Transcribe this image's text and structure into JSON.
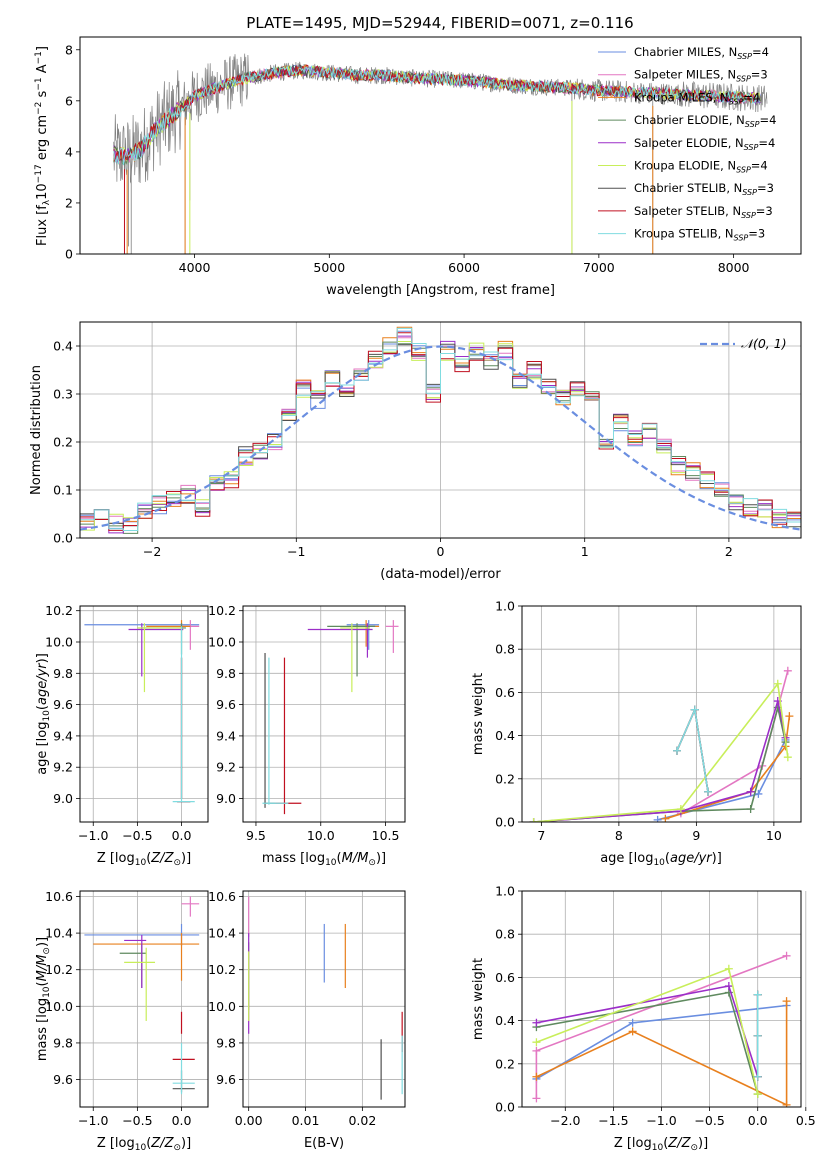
{
  "title": "PLATE=1495, MJD=52944, FIBERID=0071, z=0.116",
  "colors": {
    "Chabrier MILES": "#6a8ee0",
    "Salpeter MILES": "#e377c2",
    "Kroupa MILES": "#e8801e",
    "Chabrier ELODIE": "#5f8a5f",
    "Salpeter ELODIE": "#9b2ec8",
    "Kroupa ELODIE": "#c8ee5a",
    "Chabrier STELIB": "#505050",
    "Salpeter STELIB": "#c01020",
    "Kroupa STELIB": "#80dce0",
    "data": "#7f7f7f"
  },
  "chart_data": [
    {
      "type": "line",
      "title": "PLATE=1495, MJD=52944, FIBERID=0071, z=0.116",
      "xlabel": "wavelength [Angstrom, rest frame]",
      "ylabel": "Flux [f_λ10^-17 erg cm^-2 s^-1 A^-1]",
      "xlim": [
        3150,
        8500
      ],
      "ylim": [
        0,
        8.5
      ],
      "xticks": [
        "4000",
        "5000",
        "6000",
        "7000",
        "8000"
      ],
      "yticks": [
        "0",
        "2",
        "4",
        "6",
        "8"
      ],
      "grid": false,
      "legend_position": "top-right",
      "legend": [
        {
          "label": "Chabrier MILES, N",
          "sub": "SSP",
          "suffix": "=4"
        },
        {
          "label": "Salpeter MILES, N",
          "sub": "SSP",
          "suffix": "=3"
        },
        {
          "label": "Kroupa MILES, N",
          "sub": "SSP",
          "suffix": "=4"
        },
        {
          "label": "Chabrier ELODIE, N",
          "sub": "SSP",
          "suffix": "=4"
        },
        {
          "label": "Salpeter ELODIE, N",
          "sub": "SSP",
          "suffix": "=4"
        },
        {
          "label": "Kroupa ELODIE, N",
          "sub": "SSP",
          "suffix": "=4"
        },
        {
          "label": "Chabrier STELIB, N",
          "sub": "SSP",
          "suffix": "=3"
        },
        {
          "label": "Salpeter STELIB, N",
          "sub": "SSP",
          "suffix": "=3"
        },
        {
          "label": "Kroupa STELIB, N",
          "sub": "SSP",
          "suffix": "=3"
        }
      ],
      "continuum": [
        [
          3400,
          3.9
        ],
        [
          3500,
          3.8
        ],
        [
          3600,
          4.1
        ],
        [
          3700,
          4.8
        ],
        [
          3800,
          5.3
        ],
        [
          3900,
          5.7
        ],
        [
          4000,
          6.2
        ],
        [
          4200,
          6.6
        ],
        [
          4400,
          6.9
        ],
        [
          4600,
          7.1
        ],
        [
          4800,
          7.2
        ],
        [
          5000,
          7.1
        ],
        [
          5200,
          7.0
        ],
        [
          5400,
          7.0
        ],
        [
          5600,
          6.9
        ],
        [
          5800,
          6.85
        ],
        [
          6000,
          6.8
        ],
        [
          6200,
          6.7
        ],
        [
          6400,
          6.6
        ],
        [
          6600,
          6.55
        ],
        [
          6800,
          6.5
        ],
        [
          7000,
          6.4
        ],
        [
          7200,
          6.35
        ],
        [
          7400,
          6.3
        ],
        [
          7600,
          6.25
        ],
        [
          7800,
          6.2
        ],
        [
          8000,
          6.15
        ],
        [
          8200,
          6.1
        ]
      ],
      "dips": [
        [
          3480,
          0
        ],
        [
          3510,
          0.3
        ],
        [
          3530,
          0
        ],
        [
          3930,
          0
        ],
        [
          3965,
          2.1
        ],
        [
          6800,
          0
        ],
        [
          7400,
          0
        ]
      ]
    },
    {
      "type": "bar",
      "xlabel": "(data-model)/error",
      "ylabel": "Normed distribution",
      "xlim": [
        -2.5,
        2.5
      ],
      "ylim": [
        0,
        0.45
      ],
      "xticks": [
        "−2",
        "−1",
        "0",
        "1",
        "2"
      ],
      "yticks": [
        "0.0",
        "0.1",
        "0.2",
        "0.3",
        "0.4"
      ],
      "grid": true,
      "legend_label": "𝒩(0, 1)",
      "hist_centers": [
        -2.45,
        -2.35,
        -2.25,
        -2.15,
        -2.05,
        -1.95,
        -1.85,
        -1.75,
        -1.65,
        -1.55,
        -1.45,
        -1.35,
        -1.25,
        -1.15,
        -1.05,
        -0.95,
        -0.85,
        -0.75,
        -0.65,
        -0.55,
        -0.45,
        -0.35,
        -0.25,
        -0.15,
        -0.05,
        0.05,
        0.15,
        0.25,
        0.35,
        0.45,
        0.55,
        0.65,
        0.75,
        0.85,
        0.95,
        1.05,
        1.15,
        1.25,
        1.35,
        1.45,
        1.55,
        1.65,
        1.75,
        1.85,
        1.95,
        2.05,
        2.15,
        2.25,
        2.35,
        2.45
      ],
      "hist_base": [
        0.035,
        0.04,
        0.03,
        0.025,
        0.06,
        0.07,
        0.085,
        0.09,
        0.065,
        0.11,
        0.12,
        0.17,
        0.18,
        0.2,
        0.26,
        0.31,
        0.29,
        0.33,
        0.31,
        0.34,
        0.37,
        0.4,
        0.42,
        0.39,
        0.3,
        0.39,
        0.36,
        0.39,
        0.37,
        0.39,
        0.33,
        0.35,
        0.32,
        0.29,
        0.31,
        0.29,
        0.2,
        0.24,
        0.21,
        0.22,
        0.19,
        0.15,
        0.14,
        0.12,
        0.1,
        0.075,
        0.065,
        0.06,
        0.04,
        0.035
      ]
    },
    {
      "type": "scatter",
      "xlabel": "Z [log10(Z/Z_⊙)]",
      "ylabel": "age  [log10(age/yr)]",
      "xlim": [
        -1.15,
        0.3
      ],
      "ylim": [
        8.85,
        10.23
      ],
      "xticks": [
        "−1.0",
        "−0.5",
        "0.0"
      ],
      "yticks": [
        "9.0",
        "9.2",
        "9.4",
        "9.6",
        "9.8",
        "10.0",
        "10.2"
      ]
    },
    {
      "type": "scatter",
      "xlabel": "mass [log10(M/M_⊙)]",
      "ylabel": "",
      "xlim": [
        9.4,
        10.65
      ],
      "ylim": [
        8.85,
        10.23
      ],
      "xticks": [
        "9.5",
        "10.0",
        "10.5"
      ],
      "yticks": [
        "9.0",
        "9.2",
        "9.4",
        "9.6",
        "9.8",
        "10.0",
        "10.2"
      ]
    },
    {
      "type": "line",
      "xlabel": "age  [log10(age/yr)]",
      "ylabel": "mass weight",
      "xlim": [
        6.75,
        10.35
      ],
      "ylim": [
        0,
        1
      ],
      "xticks": [
        "7",
        "8",
        "9",
        "10"
      ],
      "yticks": [
        "0.0",
        "0.2",
        "0.4",
        "0.6",
        "0.8",
        "1.0"
      ],
      "grid": true,
      "series": [
        {
          "key": "Chabrier MILES",
          "x": [
            8.5,
            9.8,
            10.15
          ],
          "y": [
            0.01,
            0.13,
            0.38
          ]
        },
        {
          "key": "Salpeter MILES",
          "x": [
            8.8,
            9.85,
            10.18
          ],
          "y": [
            0.04,
            0.26,
            0.7
          ]
        },
        {
          "key": "Kroupa MILES",
          "x": [
            8.6,
            9.7,
            10.15,
            10.2
          ],
          "y": [
            0.015,
            0.14,
            0.35,
            0.49
          ]
        },
        {
          "key": "Chabrier ELODIE",
          "x": [
            6.9,
            8.8,
            9.7,
            10.05,
            10.15
          ],
          "y": [
            0.0,
            0.05,
            0.06,
            0.53,
            0.37
          ]
        },
        {
          "key": "Salpeter ELODIE",
          "x": [
            6.9,
            8.8,
            9.7,
            10.05,
            10.15
          ],
          "y": [
            0.0,
            0.05,
            0.14,
            0.56,
            0.39
          ]
        },
        {
          "key": "Kroupa ELODIE",
          "x": [
            6.9,
            8.8,
            10.05,
            10.18
          ],
          "y": [
            0.0,
            0.06,
            0.64,
            0.3
          ]
        },
        {
          "key": "Chabrier STELIB",
          "x": [
            8.75,
            8.98,
            9.15
          ],
          "y": [
            0.33,
            0.52,
            0.14
          ]
        },
        {
          "key": "Salpeter STELIB",
          "x": [
            8.75,
            8.98,
            9.15
          ],
          "y": [
            0.33,
            0.52,
            0.14
          ]
        },
        {
          "key": "Kroupa STELIB",
          "x": [
            8.75,
            8.98,
            9.15
          ],
          "y": [
            0.33,
            0.52,
            0.14
          ]
        }
      ]
    },
    {
      "type": "scatter",
      "xlabel": "Z [log10(Z/Z_⊙)]",
      "ylabel": "mass [log10(M/M_⊙)]",
      "xlim": [
        -1.15,
        0.3
      ],
      "ylim": [
        9.45,
        10.63
      ],
      "xticks": [
        "−1.0",
        "−0.5",
        "0.0"
      ],
      "yticks": [
        "9.6",
        "9.8",
        "10.0",
        "10.2",
        "10.4",
        "10.6"
      ]
    },
    {
      "type": "scatter",
      "xlabel": "E(B-V)",
      "ylabel": "",
      "xlim": [
        -0.001,
        0.0275
      ],
      "ylim": [
        9.45,
        10.63
      ],
      "xticks": [
        "0.00",
        "0.01",
        "0.02"
      ],
      "yticks": [
        "9.6",
        "9.8",
        "10.0",
        "10.2",
        "10.4",
        "10.6"
      ]
    },
    {
      "type": "line",
      "xlabel": "Z [log10(Z/Z_⊙)]",
      "ylabel": "mass weight",
      "xlim": [
        -2.45,
        0.45
      ],
      "ylim": [
        0,
        1
      ],
      "xticks": [
        "−2.0",
        "−1.5",
        "−1.0",
        "−0.5",
        "0.0",
        "0.5"
      ],
      "yticks": [
        "0.0",
        "0.2",
        "0.4",
        "0.6",
        "0.8",
        "1.0"
      ],
      "grid": true,
      "series": [
        {
          "key": "Chabrier MILES",
          "x": [
            -2.3,
            -1.3,
            0.3
          ],
          "y": [
            0.13,
            0.39,
            0.47
          ]
        },
        {
          "key": "Salpeter MILES",
          "x": [
            -2.3,
            -2.3,
            0.3
          ],
          "y": [
            0.04,
            0.26,
            0.7
          ]
        },
        {
          "key": "Kroupa MILES",
          "x": [
            -2.3,
            -1.3,
            0.3,
            0.3
          ],
          "y": [
            0.14,
            0.35,
            0.01,
            0.49
          ]
        },
        {
          "key": "Chabrier ELODIE",
          "x": [
            -2.3,
            -0.3,
            0.0
          ],
          "y": [
            0.37,
            0.53,
            0.06
          ]
        },
        {
          "key": "Salpeter ELODIE",
          "x": [
            -2.3,
            -0.3,
            0.0
          ],
          "y": [
            0.39,
            0.56,
            0.14
          ]
        },
        {
          "key": "Kroupa ELODIE",
          "x": [
            -2.3,
            -0.3,
            0.0
          ],
          "y": [
            0.3,
            0.64,
            0.06
          ]
        },
        {
          "key": "Chabrier STELIB",
          "x": [
            0.0,
            0.0,
            0.0
          ],
          "y": [
            0.14,
            0.33,
            0.52
          ]
        },
        {
          "key": "Salpeter STELIB",
          "x": [
            0.0,
            0.0,
            0.0
          ],
          "y": [
            0.14,
            0.33,
            0.52
          ]
        },
        {
          "key": "Kroupa STELIB",
          "x": [
            0.0,
            0.0,
            0.0
          ],
          "y": [
            0.14,
            0.33,
            0.52
          ]
        }
      ]
    }
  ],
  "errbars": {
    "age_z": [
      {
        "key": "Chabrier MILES",
        "x": 0.0,
        "y": 10.11,
        "xe": [
          -1.1,
          0.2
        ],
        "ye": [
          10.1,
          10.12
        ]
      },
      {
        "key": "Salpeter MILES",
        "x": 0.1,
        "y": 10.1,
        "xe": [
          0.0,
          0.2
        ],
        "ye": [
          9.95,
          10.14
        ]
      },
      {
        "key": "Kroupa MILES",
        "x": 0.0,
        "y": 10.1,
        "xe": [
          -0.4,
          0.1
        ],
        "ye": [
          10.07,
          10.14
        ]
      },
      {
        "key": "Chabrier ELODIE",
        "x": 0.0,
        "y": 10.09,
        "xe": [
          -0.45,
          0.05
        ],
        "ye": [
          9.92,
          10.12
        ]
      },
      {
        "key": "Salpeter ELODIE",
        "x": -0.45,
        "y": 10.08,
        "xe": [
          -0.6,
          0.02
        ],
        "ye": [
          9.78,
          10.12
        ]
      },
      {
        "key": "Kroupa ELODIE",
        "x": -0.42,
        "y": 10.09,
        "xe": [
          -0.5,
          0.0
        ],
        "ye": [
          9.68,
          10.12
        ]
      },
      {
        "key": "Chabrier STELIB",
        "x": 0.0,
        "y": 8.98,
        "xe": [
          -0.05,
          0.1
        ],
        "ye": [
          9.0,
          9.9
        ]
      },
      {
        "key": "Salpeter STELIB",
        "x": 0.0,
        "y": 8.98,
        "xe": [
          -0.05,
          0.1
        ],
        "ye": [
          9.0,
          9.9
        ]
      },
      {
        "key": "Kroupa STELIB",
        "x": 0.0,
        "y": 8.98,
        "xe": [
          -0.1,
          0.15
        ],
        "ye": [
          8.98,
          10.1
        ]
      }
    ],
    "age_mass": [
      {
        "key": "Chabrier MILES",
        "x": 10.37,
        "y": 10.11,
        "xe": [
          10.2,
          10.45
        ],
        "ye": [
          9.95,
          10.14
        ]
      },
      {
        "key": "Salpeter MILES",
        "x": 10.56,
        "y": 10.1,
        "xe": [
          10.5,
          10.6
        ],
        "ye": [
          9.93,
          10.14
        ]
      },
      {
        "key": "Kroupa MILES",
        "x": 10.35,
        "y": 10.1,
        "xe": [
          10.25,
          10.45
        ],
        "ye": [
          9.97,
          10.14
        ]
      },
      {
        "key": "Chabrier ELODIE",
        "x": 10.28,
        "y": 10.1,
        "xe": [
          10.05,
          10.42
        ],
        "ye": [
          9.78,
          10.12
        ]
      },
      {
        "key": "Salpeter ELODIE",
        "x": 10.36,
        "y": 10.08,
        "xe": [
          9.9,
          10.4
        ],
        "ye": [
          9.9,
          10.12
        ]
      },
      {
        "key": "Kroupa ELODIE",
        "x": 10.24,
        "y": 10.09,
        "xe": [
          10.15,
          10.38
        ],
        "ye": [
          9.68,
          10.12
        ]
      },
      {
        "key": "Chabrier STELIB",
        "x": 9.57,
        "y": 8.97,
        "xe": [
          9.56,
          9.65
        ],
        "ye": [
          8.94,
          9.93
        ]
      },
      {
        "key": "Salpeter STELIB",
        "x": 9.72,
        "y": 8.97,
        "xe": [
          9.65,
          9.85
        ],
        "ye": [
          8.9,
          9.9
        ]
      },
      {
        "key": "Kroupa STELIB",
        "x": 9.6,
        "y": 8.97,
        "xe": [
          9.55,
          9.75
        ],
        "ye": [
          8.96,
          9.9
        ]
      }
    ],
    "mass_z": [
      {
        "key": "Chabrier MILES",
        "x": 0.0,
        "y": 10.39,
        "xe": [
          -1.1,
          0.2
        ],
        "ye": [
          10.33,
          10.45
        ]
      },
      {
        "key": "Salpeter MILES",
        "x": 0.1,
        "y": 10.56,
        "xe": [
          0.0,
          0.2
        ],
        "ye": [
          10.49,
          10.6
        ]
      },
      {
        "key": "Kroupa MILES",
        "x": 0.0,
        "y": 10.34,
        "xe": [
          -1.0,
          0.2
        ],
        "ye": [
          10.14,
          10.4
        ]
      },
      {
        "key": "Chabrier ELODIE",
        "x": -0.45,
        "y": 10.29,
        "xe": [
          -0.7,
          -0.4
        ],
        "ye": [
          10.1,
          10.34
        ]
      },
      {
        "key": "Salpeter ELODIE",
        "x": -0.45,
        "y": 10.36,
        "xe": [
          -0.65,
          -0.4
        ],
        "ye": [
          10.1,
          10.39
        ]
      },
      {
        "key": "Kroupa ELODIE",
        "x": -0.4,
        "y": 10.24,
        "xe": [
          -0.65,
          -0.3
        ],
        "ye": [
          9.92,
          10.32
        ]
      },
      {
        "key": "Chabrier STELIB",
        "x": 0.0,
        "y": 9.55,
        "xe": [
          -0.1,
          0.15
        ],
        "ye": [
          9.53,
          9.65
        ]
      },
      {
        "key": "Salpeter STELIB",
        "x": 0.0,
        "y": 9.71,
        "xe": [
          -0.1,
          0.15
        ],
        "ye": [
          9.85,
          9.97
        ]
      },
      {
        "key": "Kroupa STELIB",
        "x": 0.0,
        "y": 9.58,
        "xe": [
          -0.1,
          0.15
        ],
        "ye": [
          9.52,
          9.8
        ]
      }
    ],
    "mass_ebv": [
      {
        "key": "Chabrier MILES",
        "x": 0.0133,
        "y": 10.29,
        "ye": [
          10.13,
          10.45
        ]
      },
      {
        "key": "Salpeter MILES",
        "x": 0.0,
        "y": 10.5,
        "ye": [
          10.38,
          10.6
        ]
      },
      {
        "key": "Kroupa MILES",
        "x": 0.017,
        "y": 10.27,
        "ye": [
          10.1,
          10.45
        ]
      },
      {
        "key": "Chabrier ELODIE",
        "x": 0.0,
        "y": 10.2,
        "ye": [
          9.98,
          10.35
        ]
      },
      {
        "key": "Salpeter ELODIE",
        "x": 0.0,
        "y": 10.15,
        "ye": [
          9.85,
          10.4
        ]
      },
      {
        "key": "Kroupa ELODIE",
        "x": 0.0,
        "y": 10.1,
        "ye": [
          9.92,
          10.3
        ]
      },
      {
        "key": "Chabrier STELIB",
        "x": 0.0233,
        "y": 9.65,
        "ye": [
          9.49,
          9.82
        ]
      },
      {
        "key": "Salpeter STELIB",
        "x": 0.027,
        "y": 9.85,
        "ye": [
          9.75,
          9.97
        ]
      },
      {
        "key": "Kroupa STELIB",
        "x": 0.027,
        "y": 9.65,
        "ye": [
          9.52,
          9.84
        ]
      }
    ]
  }
}
